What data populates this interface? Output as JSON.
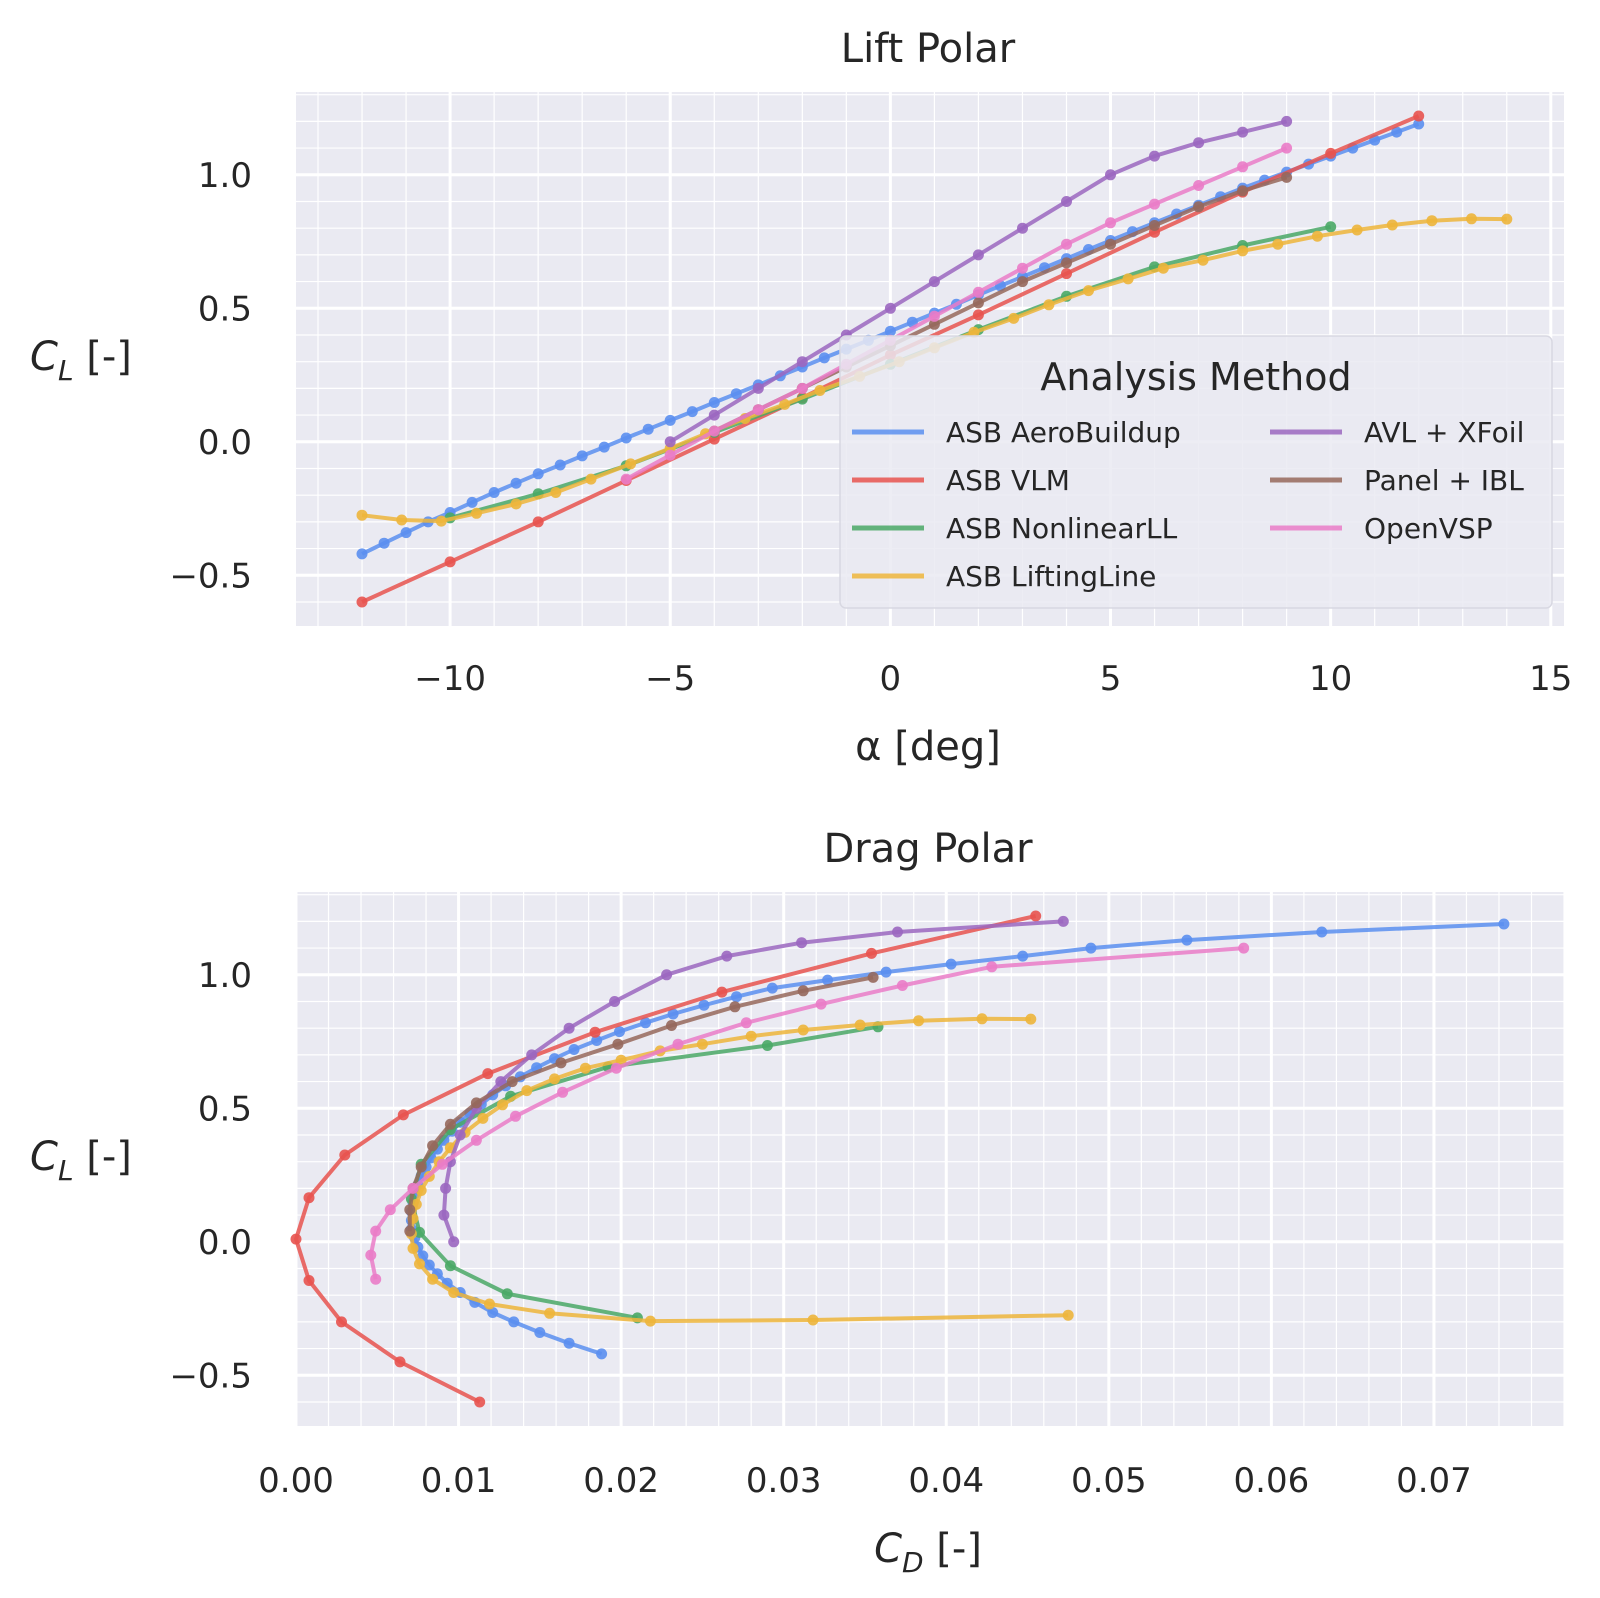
{
  "colors": {
    "ASB AeroBuildup": "#5b8ff0",
    "ASB VLM": "#e8534f",
    "ASB NonlinearLL": "#4aa866",
    "ASB LiftingLine": "#edb53b",
    "AVL + XFoil": "#9b67c0",
    "Panel + IBL": "#96685c",
    "OpenVSP": "#ea7cc8"
  },
  "legend": {
    "title": "Analysis Method",
    "entries": [
      "ASB AeroBuildup",
      "ASB VLM",
      "ASB NonlinearLL",
      "ASB LiftingLine",
      "AVL + XFoil",
      "Panel + IBL",
      "OpenVSP"
    ]
  },
  "chart_data": [
    {
      "type": "line",
      "title": "Lift Polar",
      "xlabel": "α [deg]",
      "ylabel_main": "C",
      "ylabel_sub": "L",
      "ylabel_rest": " [-]",
      "xlim": [
        -13.5,
        15.3
      ],
      "ylim": [
        -0.69,
        1.31
      ],
      "xticks": [
        -10,
        -5,
        0,
        5,
        10,
        15
      ],
      "xtick_labels": [
        "−10",
        "−5",
        "0",
        "5",
        "10",
        "15"
      ],
      "yticks": [
        -0.5,
        0.0,
        0.5,
        1.0
      ],
      "ytick_labels": [
        "−0.5",
        "0.0",
        "0.5",
        "1.0"
      ],
      "grid": true,
      "legend_position": "lower-right",
      "series": [
        {
          "name": "ASB AeroBuildup",
          "x": [
            -12,
            -11.5,
            -11,
            -10.5,
            -10,
            -9.5,
            -9,
            -8.5,
            -8,
            -7.5,
            -7,
            -6.5,
            -6,
            -5.5,
            -5,
            -4.5,
            -4,
            -3.5,
            -3,
            -2.5,
            -2,
            -1.5,
            -1,
            -0.5,
            0,
            0.5,
            1,
            1.5,
            2,
            2.5,
            3,
            3.5,
            4,
            4.5,
            5,
            5.5,
            6,
            6.5,
            7,
            7.5,
            8,
            8.5,
            9,
            9.5,
            10,
            10.5,
            11,
            11.5,
            12
          ],
          "y": [
            -0.42,
            -0.38,
            -0.34,
            -0.3,
            -0.265,
            -0.227,
            -0.19,
            -0.155,
            -0.12,
            -0.087,
            -0.053,
            -0.02,
            0.014,
            0.047,
            0.08,
            0.113,
            0.147,
            0.18,
            0.213,
            0.247,
            0.28,
            0.314,
            0.347,
            0.38,
            0.414,
            0.448,
            0.482,
            0.515,
            0.55,
            0.584,
            0.618,
            0.652,
            0.686,
            0.72,
            0.754,
            0.787,
            0.82,
            0.853,
            0.886,
            0.918,
            0.95,
            0.98,
            1.01,
            1.04,
            1.07,
            1.1,
            1.13,
            1.16,
            1.19
          ]
        },
        {
          "name": "ASB VLM",
          "x": [
            -12,
            -10,
            -8,
            -6,
            -4,
            -2,
            0,
            2,
            4,
            6,
            8,
            10,
            12
          ],
          "y": [
            -0.6,
            -0.45,
            -0.3,
            -0.145,
            0.01,
            0.165,
            0.325,
            0.475,
            0.63,
            0.785,
            0.935,
            1.08,
            1.22
          ]
        },
        {
          "name": "ASB NonlinearLL",
          "x": [
            -10,
            -8,
            -6,
            -4,
            -2,
            0,
            2,
            4,
            6,
            8,
            10
          ],
          "y": [
            -0.285,
            -0.195,
            -0.09,
            0.035,
            0.16,
            0.29,
            0.42,
            0.545,
            0.655,
            0.735,
            0.805
          ]
        },
        {
          "name": "ASB LiftingLine",
          "x": [
            -12,
            -11.1,
            -10.2,
            -9.4,
            -8.5,
            -7.6,
            -6.8,
            -5.9,
            -5,
            -4.2,
            -3.3,
            -2.4,
            -1.6,
            -0.7,
            0.2,
            1,
            1.9,
            2.8,
            3.6,
            4.5,
            5.4,
            6.2,
            7.1,
            8,
            8.8,
            9.7,
            10.6,
            11.4,
            12.3,
            13.2,
            14
          ],
          "y": [
            -0.275,
            -0.293,
            -0.297,
            -0.268,
            -0.233,
            -0.19,
            -0.14,
            -0.083,
            -0.025,
            0.03,
            0.087,
            0.14,
            0.192,
            0.245,
            0.3,
            0.352,
            0.41,
            0.462,
            0.513,
            0.566,
            0.61,
            0.65,
            0.68,
            0.715,
            0.74,
            0.77,
            0.793,
            0.812,
            0.828,
            0.835,
            0.834
          ]
        },
        {
          "name": "AVL + XFoil",
          "x": [
            -5,
            -4,
            -3,
            -2,
            -1,
            0,
            1,
            2,
            3,
            4,
            5,
            6,
            7,
            8,
            9
          ],
          "y": [
            0.0,
            0.1,
            0.2,
            0.3,
            0.4,
            0.5,
            0.6,
            0.7,
            0.8,
            0.9,
            1.0,
            1.07,
            1.12,
            1.16,
            1.2
          ]
        },
        {
          "name": "Panel + IBL",
          "x": [
            -4,
            -3,
            -2,
            -1,
            0,
            1,
            2,
            3,
            4,
            5,
            6,
            7,
            8,
            9
          ],
          "y": [
            0.04,
            0.12,
            0.2,
            0.28,
            0.36,
            0.44,
            0.52,
            0.6,
            0.67,
            0.74,
            0.81,
            0.88,
            0.94,
            0.99
          ]
        },
        {
          "name": "OpenVSP",
          "x": [
            -6,
            -5,
            -4,
            -3,
            -2,
            -1,
            0,
            1,
            2,
            3,
            4,
            5,
            6,
            7,
            8,
            9
          ],
          "y": [
            -0.14,
            -0.05,
            0.04,
            0.12,
            0.2,
            0.29,
            0.38,
            0.47,
            0.56,
            0.65,
            0.74,
            0.82,
            0.89,
            0.96,
            1.03,
            1.1
          ]
        }
      ]
    },
    {
      "type": "line",
      "title": "Drag Polar",
      "xlabel_main": "C",
      "xlabel_sub": "D",
      "xlabel_rest": " [-]",
      "ylabel_main": "C",
      "ylabel_sub": "L",
      "ylabel_rest": " [-]",
      "xlim": [
        0.0,
        0.078
      ],
      "ylim": [
        -0.69,
        1.31
      ],
      "xticks": [
        0.0,
        0.01,
        0.02,
        0.03,
        0.04,
        0.05,
        0.06,
        0.07
      ],
      "xtick_labels": [
        "0.00",
        "0.01",
        "0.02",
        "0.03",
        "0.04",
        "0.05",
        "0.06",
        "0.07"
      ],
      "yticks": [
        -0.5,
        0.0,
        0.5,
        1.0
      ],
      "ytick_labels": [
        "−0.5",
        "0.0",
        "0.5",
        "1.0"
      ],
      "grid": true,
      "series": [
        {
          "name": "ASB AeroBuildup",
          "x": [
            0.0188,
            0.0168,
            0.015,
            0.0134,
            0.0121,
            0.011,
            0.0101,
            0.0093,
            0.0087,
            0.0082,
            0.0078,
            0.0075,
            0.0073,
            0.0071,
            0.0071,
            0.0071,
            0.0072,
            0.0073,
            0.0075,
            0.0077,
            0.008,
            0.0083,
            0.0087,
            0.0091,
            0.0096,
            0.0101,
            0.0107,
            0.0114,
            0.0121,
            0.0129,
            0.0138,
            0.0148,
            0.0159,
            0.0171,
            0.0185,
            0.0199,
            0.0215,
            0.0232,
            0.0251,
            0.0271,
            0.0293,
            0.0327,
            0.0363,
            0.0403,
            0.0447,
            0.0489,
            0.0548,
            0.0631,
            0.0743
          ],
          "y": [
            -0.42,
            -0.38,
            -0.34,
            -0.3,
            -0.265,
            -0.227,
            -0.19,
            -0.155,
            -0.12,
            -0.087,
            -0.053,
            -0.02,
            0.014,
            0.047,
            0.08,
            0.113,
            0.147,
            0.18,
            0.213,
            0.247,
            0.28,
            0.314,
            0.347,
            0.38,
            0.414,
            0.448,
            0.482,
            0.515,
            0.55,
            0.584,
            0.618,
            0.652,
            0.686,
            0.72,
            0.754,
            0.787,
            0.82,
            0.853,
            0.886,
            0.918,
            0.95,
            0.98,
            1.01,
            1.04,
            1.07,
            1.1,
            1.13,
            1.16,
            1.19
          ]
        },
        {
          "name": "ASB VLM",
          "x": [
            0.0113,
            0.0064,
            0.0028,
            0.0008,
            0.0,
            0.0008,
            0.003,
            0.0066,
            0.0118,
            0.0184,
            0.0262,
            0.0354,
            0.0455
          ],
          "y": [
            -0.6,
            -0.45,
            -0.3,
            -0.145,
            0.01,
            0.165,
            0.325,
            0.475,
            0.63,
            0.785,
            0.935,
            1.08,
            1.22
          ]
        },
        {
          "name": "ASB NonlinearLL",
          "x": [
            0.021,
            0.013,
            0.0095,
            0.0076,
            0.0071,
            0.0077,
            0.0095,
            0.0132,
            0.0192,
            0.029,
            0.0358
          ],
          "y": [
            -0.285,
            -0.195,
            -0.09,
            0.035,
            0.16,
            0.29,
            0.42,
            0.545,
            0.655,
            0.735,
            0.805
          ]
        },
        {
          "name": "ASB LiftingLine",
          "x": [
            0.0475,
            0.0318,
            0.0218,
            0.0156,
            0.0119,
            0.0097,
            0.0084,
            0.0076,
            0.0072,
            0.0071,
            0.0072,
            0.0074,
            0.0077,
            0.0082,
            0.0088,
            0.0095,
            0.0104,
            0.0115,
            0.0127,
            0.0142,
            0.0159,
            0.0178,
            0.02,
            0.0224,
            0.025,
            0.028,
            0.0312,
            0.0347,
            0.0383,
            0.0422,
            0.0452
          ],
          "y": [
            -0.275,
            -0.293,
            -0.297,
            -0.268,
            -0.233,
            -0.19,
            -0.14,
            -0.083,
            -0.025,
            0.03,
            0.087,
            0.14,
            0.192,
            0.245,
            0.3,
            0.352,
            0.41,
            0.462,
            0.513,
            0.566,
            0.61,
            0.65,
            0.68,
            0.715,
            0.74,
            0.77,
            0.793,
            0.812,
            0.828,
            0.835,
            0.834
          ]
        },
        {
          "name": "AVL + XFoil",
          "x": [
            0.0097,
            0.0091,
            0.0092,
            0.0095,
            0.0101,
            0.0111,
            0.0126,
            0.0145,
            0.0168,
            0.0196,
            0.0228,
            0.0265,
            0.0311,
            0.037,
            0.0472
          ],
          "y": [
            0.0,
            0.1,
            0.2,
            0.3,
            0.4,
            0.5,
            0.6,
            0.7,
            0.8,
            0.9,
            1.0,
            1.07,
            1.12,
            1.16,
            1.2
          ]
        },
        {
          "name": "Panel + IBL",
          "x": [
            0.007,
            0.007,
            0.0072,
            0.0077,
            0.0084,
            0.0095,
            0.0111,
            0.0133,
            0.0163,
            0.0198,
            0.0231,
            0.027,
            0.0312,
            0.0355
          ],
          "y": [
            0.04,
            0.12,
            0.2,
            0.28,
            0.36,
            0.44,
            0.52,
            0.6,
            0.67,
            0.74,
            0.81,
            0.88,
            0.94,
            0.99
          ]
        },
        {
          "name": "OpenVSP",
          "x": [
            0.0049,
            0.0046,
            0.0049,
            0.0058,
            0.0072,
            0.009,
            0.0111,
            0.0135,
            0.0164,
            0.0197,
            0.0235,
            0.0277,
            0.0323,
            0.0373,
            0.0428,
            0.0583
          ],
          "y": [
            -0.14,
            -0.05,
            0.04,
            0.12,
            0.2,
            0.29,
            0.38,
            0.47,
            0.56,
            0.65,
            0.74,
            0.82,
            0.89,
            0.96,
            1.03,
            1.1
          ]
        }
      ]
    }
  ]
}
